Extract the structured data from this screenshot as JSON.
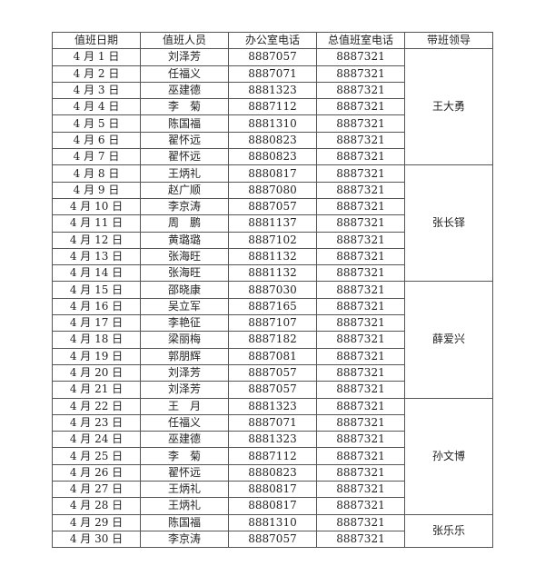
{
  "headers": [
    "值班日期",
    "值班人员",
    "办公室电话",
    "总值班室电话",
    "带班领导"
  ],
  "rows": [
    {
      "date": "4 月 1 日",
      "person": "刘泽芳",
      "office": "8887057",
      "duty": "8887321"
    },
    {
      "date": "4 月 2 日",
      "person": "任福义",
      "office": "8887071",
      "duty": "8887321"
    },
    {
      "date": "4 月 3 日",
      "person": "巫建德",
      "office": "8881323",
      "duty": "8887321"
    },
    {
      "date": "4 月 4 日",
      "person": "李　菊",
      "office": "8887112",
      "duty": "8887321"
    },
    {
      "date": "4 月 5 日",
      "person": "陈国福",
      "office": "8881310",
      "duty": "8887321"
    },
    {
      "date": "4 月 6 日",
      "person": "翟怀远",
      "office": "8880823",
      "duty": "8887321"
    },
    {
      "date": "4 月 7 日",
      "person": "翟怀远",
      "office": "8880823",
      "duty": "8887321"
    },
    {
      "date": "4 月 8 日",
      "person": "王炳礼",
      "office": "8880817",
      "duty": "8887321"
    },
    {
      "date": "4 月 9 日",
      "person": "赵广顺",
      "office": "8887080",
      "duty": "8887321"
    },
    {
      "date": "4 月 10 日",
      "person": "李京涛",
      "office": "8887057",
      "duty": "8887321"
    },
    {
      "date": "4 月 11 日",
      "person": "周　鹏",
      "office": "8881137",
      "duty": "8887321"
    },
    {
      "date": "4 月 12 日",
      "person": "黄璐璐",
      "office": "8887102",
      "duty": "8887321"
    },
    {
      "date": "4 月 13 日",
      "person": "张海旺",
      "office": "8881132",
      "duty": "8887321"
    },
    {
      "date": "4 月 14 日",
      "person": "张海旺",
      "office": "8881132",
      "duty": "8887321"
    },
    {
      "date": "4 月 15 日",
      "person": "邵晓康",
      "office": "8887030",
      "duty": "8887321"
    },
    {
      "date": "4 月 16 日",
      "person": "吴立军",
      "office": "8887165",
      "duty": "8887321"
    },
    {
      "date": "4 月 17 日",
      "person": "李艳征",
      "office": "8887107",
      "duty": "8887321"
    },
    {
      "date": "4 月 18 日",
      "person": "梁丽梅",
      "office": "8887182",
      "duty": "8887321"
    },
    {
      "date": "4 月 19 日",
      "person": "郭朋辉",
      "office": "8887081",
      "duty": "8887321"
    },
    {
      "date": "4 月 20 日",
      "person": "刘泽芳",
      "office": "8887057",
      "duty": "8887321"
    },
    {
      "date": "4 月 21 日",
      "person": "刘泽芳",
      "office": "8887057",
      "duty": "8887321"
    },
    {
      "date": "4 月 22 日",
      "person": "王　月",
      "office": "8881323",
      "duty": "8887321"
    },
    {
      "date": "4 月 23 日",
      "person": "任福义",
      "office": "8887071",
      "duty": "8887321"
    },
    {
      "date": "4 月 24 日",
      "person": "巫建德",
      "office": "8881323",
      "duty": "8887321"
    },
    {
      "date": "4 月 25 日",
      "person": "李　菊",
      "office": "8887112",
      "duty": "8887321"
    },
    {
      "date": "4 月 26 日",
      "person": "翟怀远",
      "office": "8880823",
      "duty": "8887321"
    },
    {
      "date": "4 月 27 日",
      "person": "王炳礼",
      "office": "8880817",
      "duty": "8887321"
    },
    {
      "date": "4 月 28 日",
      "person": "王炳礼",
      "office": "8880817",
      "duty": "8887321"
    },
    {
      "date": "4 月 29 日",
      "person": "陈国福",
      "office": "8881310",
      "duty": "8887321"
    },
    {
      "date": "4 月 30 日",
      "person": "李京涛",
      "office": "8887057",
      "duty": "8887321"
    }
  ],
  "leaders": [
    {
      "name": "王大勇",
      "rows": 7
    },
    {
      "name": "张长铎",
      "rows": 7
    },
    {
      "name": "薛爱兴",
      "rows": 7
    },
    {
      "name": "孙文博",
      "rows": 7
    },
    {
      "name": "张乐乐",
      "rows": 2
    }
  ]
}
